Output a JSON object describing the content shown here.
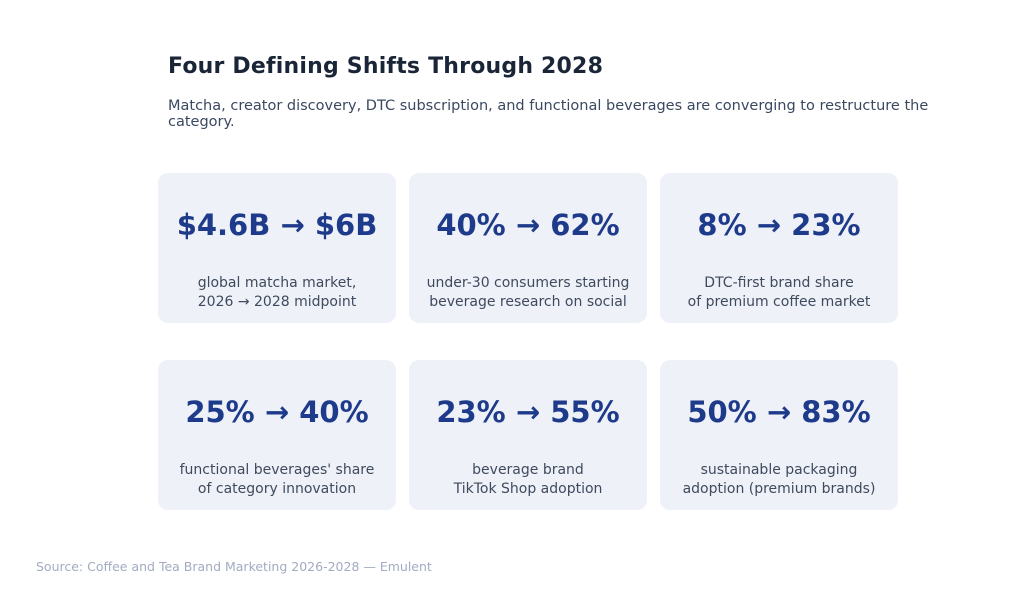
{
  "header": {
    "title": "Four Defining Shifts Through 2028",
    "subtitle": "Matcha, creator discovery, DTC subscription, and functional beverages are converging to restructure the category."
  },
  "cards": [
    {
      "value": "$4.6B → $6B",
      "lines": [
        "global matcha market,",
        "2026 → 2028 midpoint"
      ]
    },
    {
      "value": "40% → 62%",
      "lines": [
        "under-30 consumers starting",
        "beverage research on social"
      ]
    },
    {
      "value": "8% → 23%",
      "lines": [
        "DTC-first brand share",
        "of premium coffee market"
      ]
    },
    {
      "value": "25% → 40%",
      "lines": [
        "functional beverages' share",
        "of category innovation"
      ]
    },
    {
      "value": "23% → 55%",
      "lines": [
        "beverage brand",
        "TikTok Shop adoption"
      ]
    },
    {
      "value": "50% → 83%",
      "lines": [
        "sustainable packaging",
        "adoption (premium brands)"
      ]
    }
  ],
  "footer": {
    "source": "Source: Coffee and Tea Brand Marketing 2026-2028 — Emulent"
  },
  "colors": {
    "accent_number": "#1e3a8a",
    "card_background": "#eef1f7",
    "title_text": "#1a2537",
    "body_text": "#3f4a5e",
    "footer_text": "#a3abc2"
  },
  "chart_data": {
    "type": "table",
    "title": "Four Defining Shifts Through 2028",
    "subtitle": "Matcha, creator discovery, DTC subscription, and functional beverages are converging to restructure the category.",
    "metrics": [
      {
        "label": "global matcha market, 2026 → 2028 midpoint",
        "from": "$4.6B",
        "to": "$6B"
      },
      {
        "label": "under-30 consumers starting beverage research on social",
        "from": "40%",
        "to": "62%"
      },
      {
        "label": "DTC-first brand share of premium coffee market",
        "from": "8%",
        "to": "23%"
      },
      {
        "label": "functional beverages' share of category innovation",
        "from": "25%",
        "to": "40%"
      },
      {
        "label": "beverage brand TikTok Shop adoption",
        "from": "23%",
        "to": "55%"
      },
      {
        "label": "sustainable packaging adoption (premium brands)",
        "from": "50%",
        "to": "83%"
      }
    ],
    "source": "Source: Coffee and Tea Brand Marketing 2026-2028 — Emulent"
  }
}
